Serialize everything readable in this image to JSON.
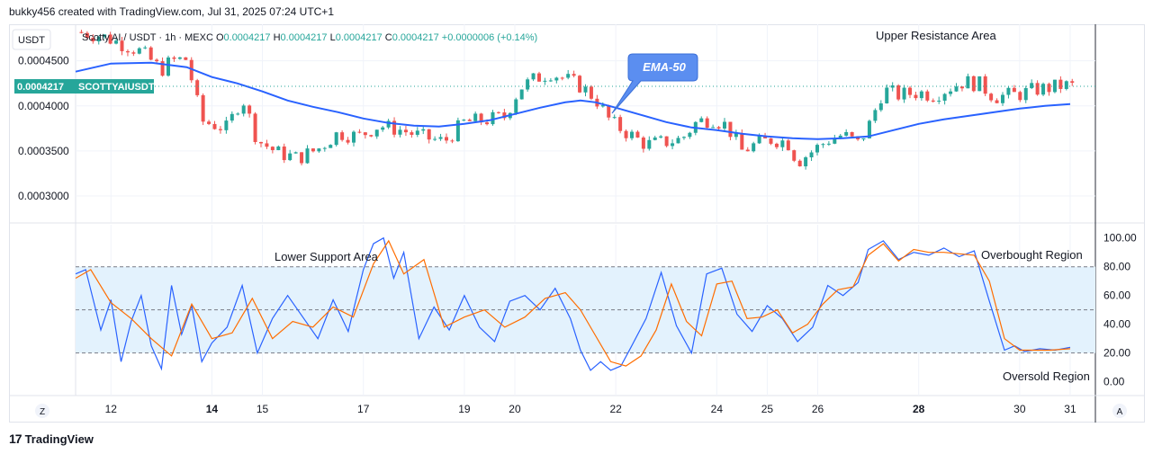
{
  "header": "bukky456 created with TradingView.com, Jul 31, 2025 07:24 UTC+1",
  "footer": {
    "logo": "17",
    "brand": "TradingView"
  },
  "colors": {
    "up": "#26a69a",
    "down": "#ef5350",
    "ema": "#2962ff",
    "k_line": "#2962ff",
    "d_line": "#ff6d00",
    "band": "#e3f2fd",
    "grid": "#f0f3fa",
    "price_label": "#26a69a",
    "callout": "#5b8ef0"
  },
  "toolbar": {
    "currency": "USDT",
    "z_button": "Z",
    "a_button": "A"
  },
  "legend": {
    "symbol": "Scotty AI / USDT · 1h · MEXC",
    "o_label": "O",
    "o": "0.0004217",
    "h_label": "H",
    "h": "0.0004217",
    "l_label": "L",
    "l": "0.0004217",
    "c_label": "C",
    "c": "0.0004217",
    "change": "+0.0000006 (+0.14%)"
  },
  "price_label": {
    "value": "0.0004217",
    "ticker": "SCOTTYAIUSDT"
  },
  "annotations": {
    "ema": "EMA-50",
    "upper_resistance": "Upper Resistance Area",
    "lower_support": "Lower Support Area",
    "overbought": "Overbought Region",
    "oversold": "Oversold Region"
  },
  "chart_data": [
    {
      "type": "candlestick",
      "title": "Scotty AI / USDT · 1h · MEXC",
      "y_ticks": [
        "0.0004500",
        "0.0004000",
        "0.0003500",
        "0.0003000"
      ],
      "y_tick_values": [
        0.00045,
        0.0004,
        0.00035,
        0.0003
      ],
      "ylim": [
        0.000271,
        0.0004906
      ],
      "x_ticks": [
        "12",
        "14",
        "15",
        "17",
        "19",
        "20",
        "22",
        "24",
        "25",
        "26",
        "28",
        "30",
        "31"
      ],
      "x_tick_days": [
        12,
        14,
        15,
        17,
        19,
        20,
        22,
        24,
        25,
        26,
        28,
        30,
        31
      ],
      "x_range_days": [
        11.3,
        31.5
      ],
      "close_series": {
        "days": [
          11.3,
          11.8,
          12.3,
          12.6,
          13.0,
          13.2,
          13.5,
          13.8,
          14.3,
          14.6,
          14.9,
          15.3,
          15.7,
          16.1,
          16.5,
          16.9,
          17.3,
          17.7,
          18.2,
          18.6,
          19.0,
          19.4,
          19.8,
          20.1,
          20.4,
          20.7,
          21.0,
          21.3,
          21.6,
          21.9,
          22.2,
          22.6,
          23.0,
          23.3,
          23.6,
          23.9,
          24.2,
          24.5,
          24.8,
          25.1,
          25.4,
          25.6,
          25.9,
          26.2,
          26.5,
          26.8,
          27.0,
          27.3,
          27.6,
          28.0,
          28.3,
          28.6,
          28.9,
          29.2,
          29.5,
          29.8,
          30.0,
          30.3,
          30.6,
          30.9,
          31.0
        ],
        "values": [
          0.000482,
          0.000478,
          0.000467,
          0.00046,
          0.00044,
          0.00045,
          0.000452,
          0.000383,
          0.000375,
          0.00041,
          0.000362,
          0.000348,
          0.000342,
          0.000352,
          0.00037,
          0.000366,
          0.000378,
          0.000374,
          0.000365,
          0.00036,
          0.000382,
          0.000384,
          0.000388,
          0.00042,
          0.00043,
          0.000437,
          0.00043,
          0.000422,
          0.000408,
          0.000382,
          0.000371,
          0.000357,
          0.00036,
          0.000363,
          0.000382,
          0.000386,
          0.000378,
          0.00035,
          0.000358,
          0.000363,
          0.00036,
          0.000338,
          0.00035,
          0.000362,
          0.000368,
          0.000358,
          0.000376,
          0.000418,
          0.000412,
          0.000415,
          0.000412,
          0.00042,
          0.000427,
          0.000424,
          0.00041,
          0.000412,
          0.000413,
          0.000418,
          0.00042,
          0.000423,
          0.000422
        ]
      },
      "series": [
        {
          "name": "EMA-50",
          "days": [
            11.3,
            12.0,
            12.8,
            13.5,
            14.0,
            14.5,
            15.0,
            15.5,
            16.0,
            16.5,
            17.0,
            17.5,
            18.0,
            18.5,
            19.0,
            19.5,
            20.0,
            20.5,
            21.0,
            21.3,
            21.6,
            22.0,
            22.5,
            23.0,
            23.5,
            24.0,
            24.5,
            25.0,
            25.5,
            26.0,
            26.5,
            27.0,
            27.5,
            28.0,
            28.5,
            29.0,
            29.5,
            30.0,
            30.5,
            31.0
          ],
          "values": [
            0.000438,
            0.000447,
            0.000448,
            0.000443,
            0.000432,
            0.000425,
            0.000416,
            0.000406,
            0.000399,
            0.000393,
            0.000386,
            0.000381,
            0.000378,
            0.000377,
            0.00038,
            0.000384,
            0.000391,
            0.000398,
            0.000404,
            0.000406,
            0.000404,
            0.000398,
            0.00039,
            0.000382,
            0.000376,
            0.000373,
            0.000369,
            0.000366,
            0.000364,
            0.000363,
            0.000364,
            0.000366,
            0.000373,
            0.00038,
            0.000385,
            0.000389,
            0.000393,
            0.000397,
            0.0004,
            0.000402
          ]
        }
      ]
    },
    {
      "type": "line",
      "title": "",
      "y_ticks": [
        "100.00",
        "80.00",
        "60.00",
        "40.00",
        "20.00",
        "0.00"
      ],
      "y_tick_values": [
        100,
        80,
        60,
        40,
        20,
        0
      ],
      "ylim": [
        -9.6,
        109.2
      ],
      "band": [
        20,
        80
      ],
      "midline": 50,
      "x_range_days": [
        11.3,
        31.5
      ],
      "series": [
        {
          "name": "",
          "days": [
            11.3,
            11.5,
            11.8,
            12.0,
            12.2,
            12.4,
            12.6,
            12.8,
            13.0,
            13.2,
            13.4,
            13.6,
            13.8,
            14.0,
            14.3,
            14.6,
            14.9,
            15.2,
            15.5,
            15.8,
            16.1,
            16.4,
            16.7,
            17.0,
            17.2,
            17.4,
            17.6,
            17.8,
            18.1,
            18.4,
            18.7,
            19.0,
            19.3,
            19.6,
            19.9,
            20.2,
            20.5,
            20.8,
            21.1,
            21.3,
            21.5,
            21.7,
            21.9,
            22.1,
            22.3,
            22.6,
            22.9,
            23.2,
            23.5,
            23.8,
            24.1,
            24.4,
            24.7,
            25.0,
            25.3,
            25.6,
            25.9,
            26.2,
            26.5,
            26.8,
            27.0,
            27.3,
            27.6,
            27.9,
            28.2,
            28.5,
            28.8,
            29.1,
            29.4,
            29.7,
            29.9,
            30.1,
            30.4,
            30.7,
            31.0
          ],
          "values": [
            75,
            78,
            36,
            57,
            14,
            42,
            60,
            25,
            9,
            67,
            33,
            53,
            14,
            27,
            38,
            67,
            20,
            44,
            60,
            45,
            30,
            57,
            35,
            78,
            96,
            100,
            72,
            90,
            30,
            52,
            36,
            60,
            38,
            28,
            56,
            60,
            50,
            65,
            44,
            22,
            8,
            14,
            8,
            11,
            24,
            44,
            76,
            39,
            20,
            75,
            79,
            47,
            35,
            53,
            44,
            28,
            38,
            67,
            60,
            69,
            92,
            98,
            85,
            90,
            88,
            93,
            87,
            91,
            56,
            22,
            25,
            21,
            23,
            22,
            24
          ]
        },
        {
          "name": "",
          "days": [
            11.3,
            11.6,
            12.0,
            12.4,
            12.8,
            13.2,
            13.6,
            14.0,
            14.4,
            14.8,
            15.2,
            15.6,
            16.0,
            16.4,
            16.8,
            17.2,
            17.5,
            17.8,
            18.2,
            18.6,
            19.0,
            19.4,
            19.8,
            20.2,
            20.6,
            21.0,
            21.3,
            21.6,
            21.9,
            22.2,
            22.5,
            22.8,
            23.1,
            23.4,
            23.7,
            24.0,
            24.3,
            24.6,
            24.9,
            25.2,
            25.5,
            25.8,
            26.1,
            26.4,
            26.7,
            27.0,
            27.3,
            27.6,
            27.9,
            28.2,
            28.5,
            28.8,
            29.1,
            29.4,
            29.7,
            30.0,
            30.3,
            30.6,
            31.0
          ],
          "values": [
            72,
            78,
            55,
            44,
            30,
            18,
            54,
            30,
            34,
            58,
            30,
            42,
            38,
            52,
            45,
            82,
            98,
            75,
            85,
            38,
            45,
            50,
            38,
            45,
            58,
            62,
            50,
            32,
            14,
            11,
            18,
            36,
            68,
            42,
            32,
            68,
            70,
            44,
            45,
            50,
            34,
            40,
            54,
            64,
            66,
            88,
            96,
            84,
            92,
            90,
            90,
            89,
            88,
            70,
            30,
            22,
            22,
            22,
            23
          ]
        }
      ]
    }
  ]
}
